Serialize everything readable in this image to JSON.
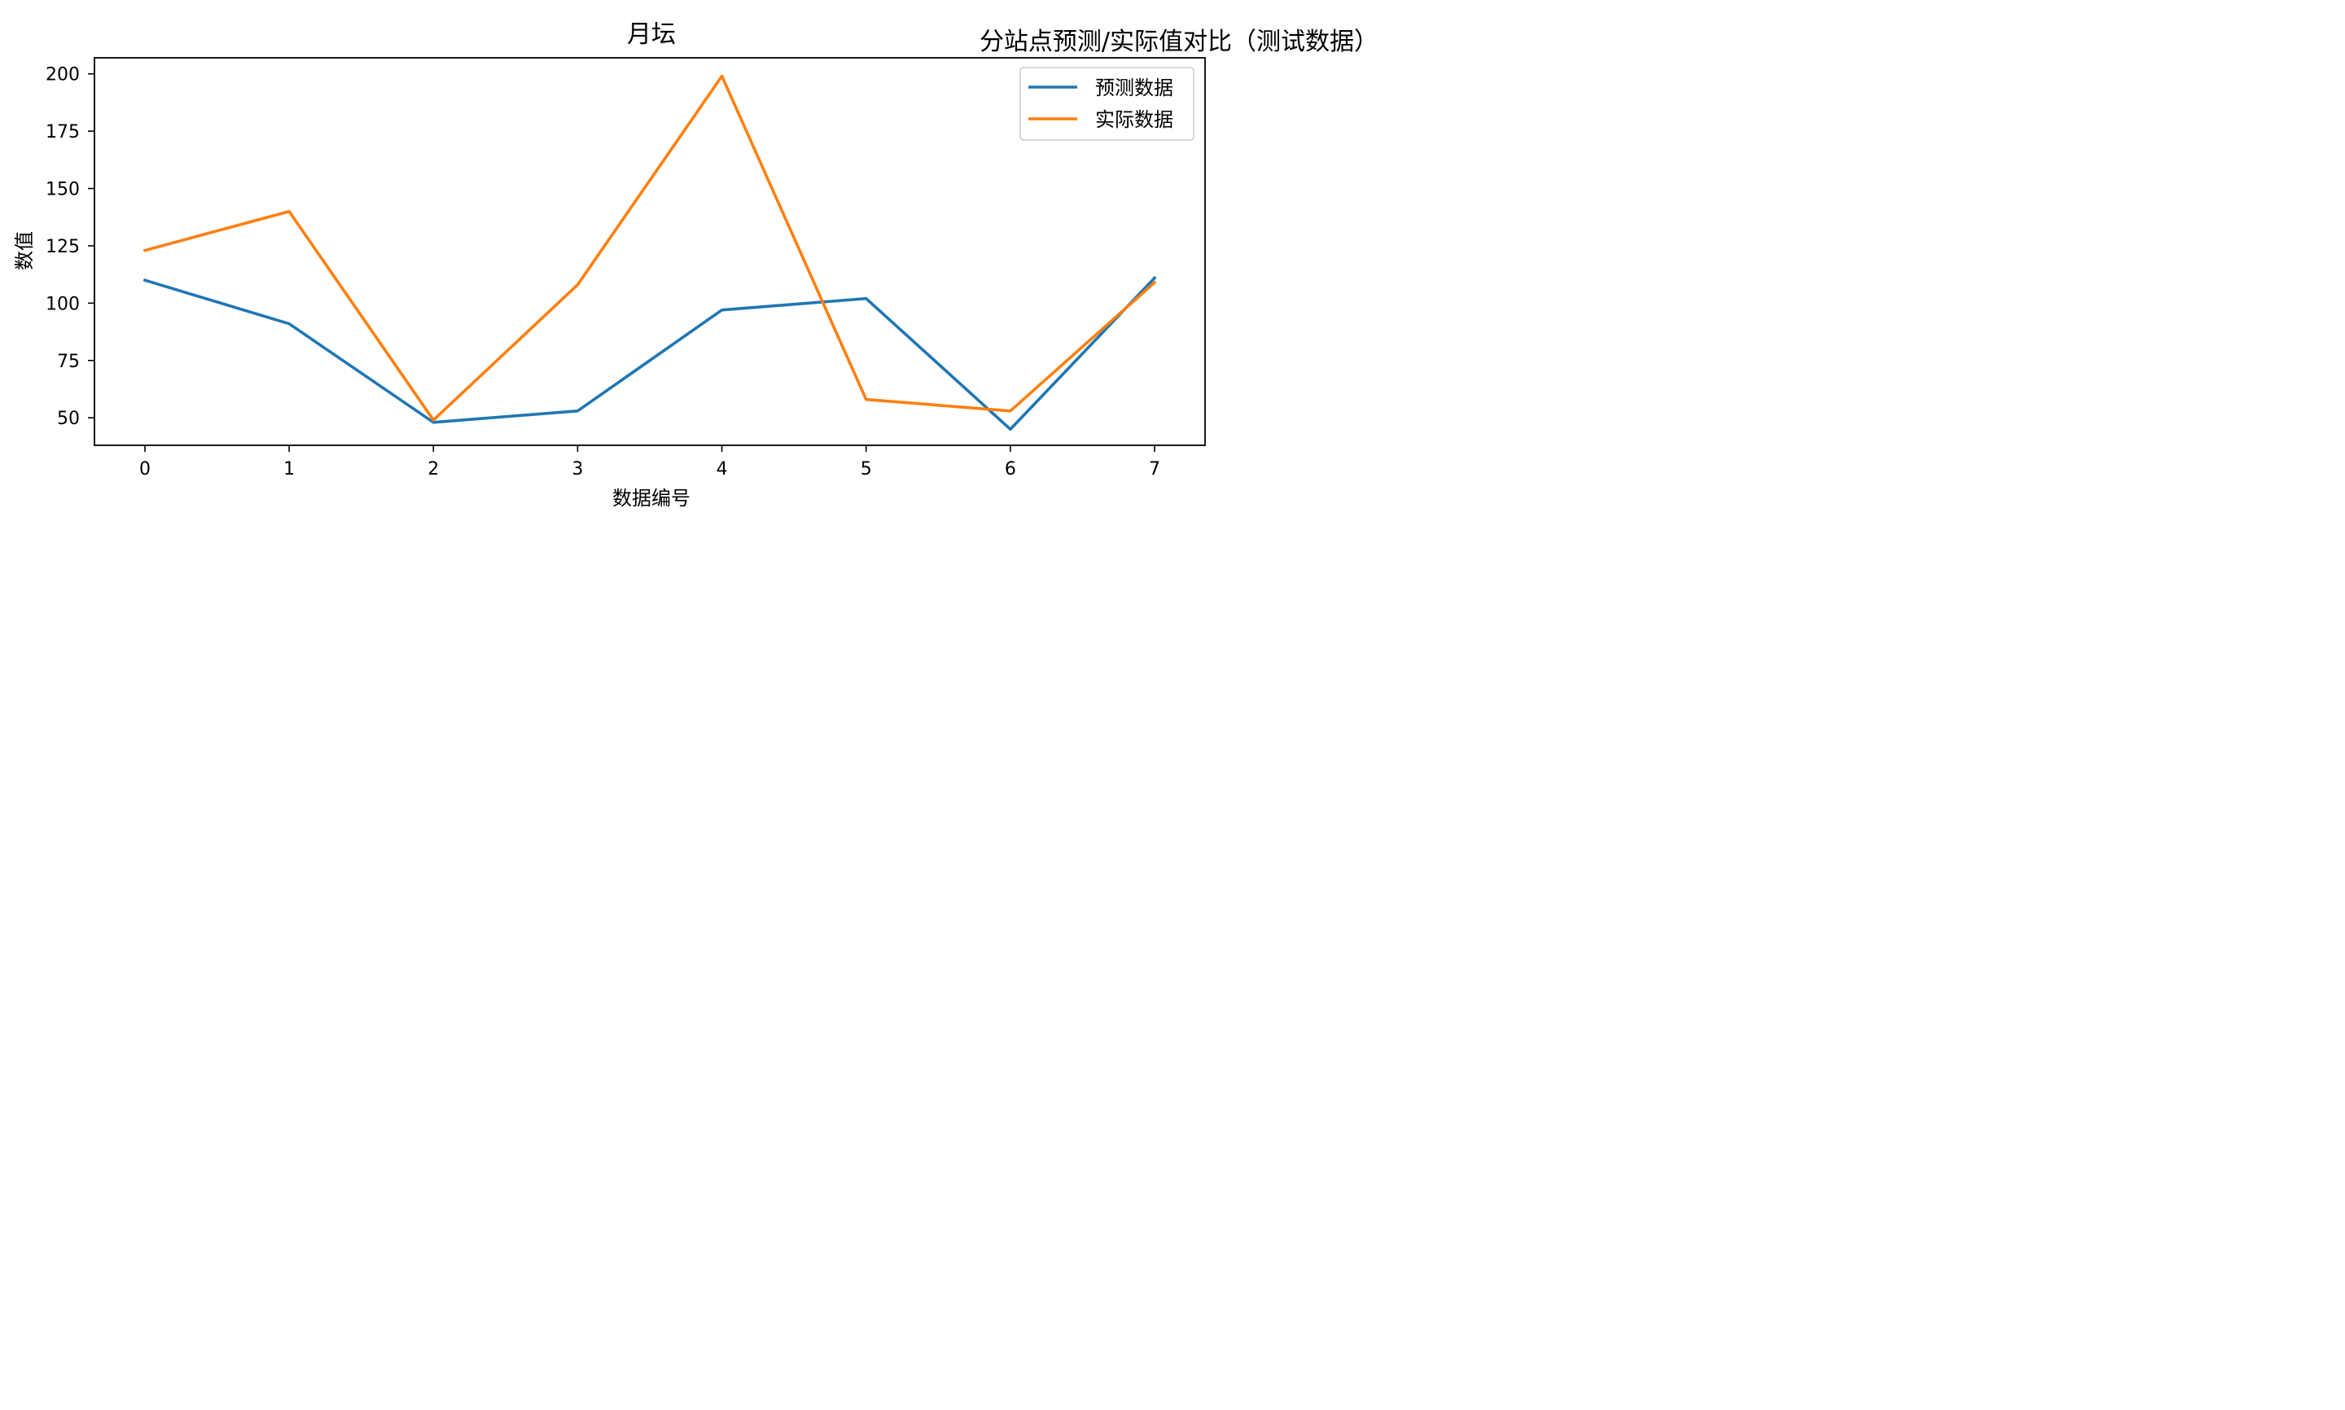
{
  "figure": {
    "suptitle": "分站点预测/实际值对比（测试数据）"
  },
  "chart_data": {
    "type": "line",
    "title": "月坛",
    "xlabel": "数据编号",
    "ylabel": "数值",
    "x": [
      0,
      1,
      2,
      3,
      4,
      5,
      6,
      7
    ],
    "xlim": [
      -0.35,
      7.35
    ],
    "ylim": [
      38,
      207
    ],
    "yticks": [
      50,
      75,
      100,
      125,
      150,
      175,
      200
    ],
    "grid": false,
    "legend_position": "top-right",
    "series": [
      {
        "name": "预测数据",
        "color": "#1f77b4",
        "values": [
          110,
          91,
          48,
          53,
          97,
          102,
          45,
          111
        ]
      },
      {
        "name": "实际数据",
        "color": "#ff7f0e",
        "values": [
          123,
          140,
          49,
          108,
          199,
          58,
          53,
          109
        ]
      }
    ]
  }
}
